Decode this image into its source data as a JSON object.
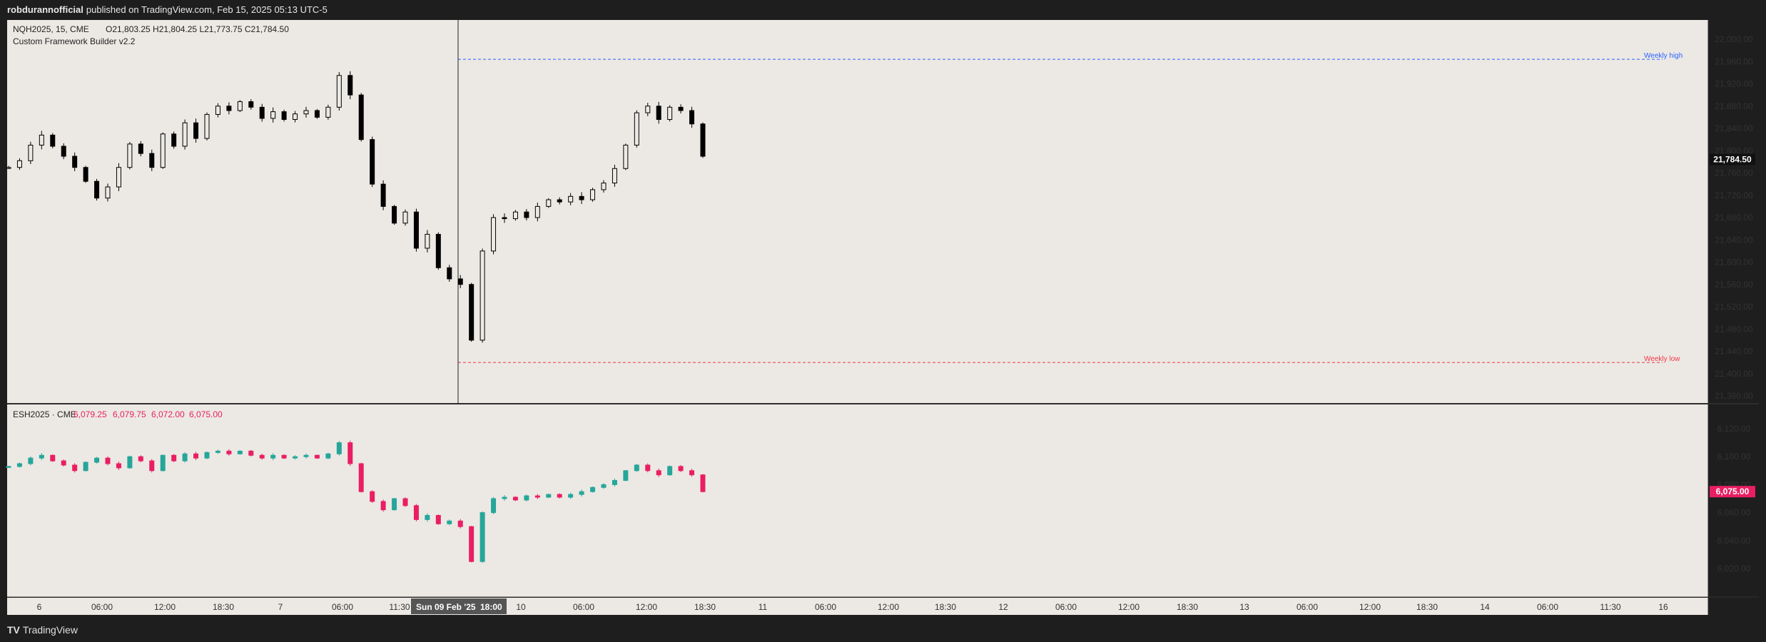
{
  "header": {
    "publisher": "robdurannofficial",
    "published_text": "published on TradingView.com, Feb 15, 2025 05:13 UTC-5"
  },
  "footer": {
    "logo": "TV",
    "brand": "TradingView"
  },
  "upper_pane": {
    "symbol": "NQH2025, 15, CME",
    "ohlc": "O21,803.25  H21,804.25  L21,773.75  C21,784.50",
    "indicator": "Custom Framework Builder v2.2",
    "price_label": "21,784.50",
    "weekly_high_label": "Weekly high",
    "weekly_low_label": "Weekly low",
    "y_ticks": [
      "22,000.00",
      "21,960.00",
      "21,920.00",
      "21,880.00",
      "21,840.00",
      "21,800.00",
      "21,760.00",
      "21,720.00",
      "21,680.00",
      "21,640.00",
      "21,600.00",
      "21,560.00",
      "21,520.00",
      "21,480.00",
      "21,440.00",
      "21,400.00",
      "21,360.00"
    ]
  },
  "lower_pane": {
    "symbol": "ESH2025 · CME",
    "o": "6,079.25",
    "h": "6,079.75",
    "l": "6,072.00",
    "c": "6,075.00",
    "price_label": "6,075.00",
    "y_ticks": [
      "6,120.00",
      "6,100.00",
      "6,080.00",
      "6,060.00",
      "6,040.00",
      "6,020.00"
    ]
  },
  "x_axis": {
    "ticks": [
      "6",
      "06:00",
      "12:00",
      "18:30",
      "7",
      "06:00",
      "11:30",
      "10",
      "06:00",
      "12:00",
      "18:30",
      "11",
      "06:00",
      "12:00",
      "18:30",
      "12",
      "06:00",
      "12:00",
      "18:30",
      "13",
      "06:00",
      "12:00",
      "18:30",
      "14",
      "06:00",
      "11:30",
      "16"
    ],
    "cursor_label": "Sun 09 Feb '25",
    "cursor_time": "18:00"
  },
  "colors": {
    "pane_bg": "#ece9e4",
    "frame_bg": "#1e1e1e",
    "candle": "#000000",
    "es_up": "#26a69a",
    "es_down": "#e91e63",
    "weekly_high": "#2962ff",
    "weekly_low": "#f23645"
  },
  "chart_data": [
    {
      "type": "candlestick",
      "symbol": "NQH2025",
      "interval": "15",
      "ylim": [
        21360,
        22000
      ],
      "weekly_high": 21964,
      "weekly_low": 21420,
      "last_close": 21784.5,
      "series": [
        {
          "name": "NQH2025",
          "values": [
            21770,
            21782,
            21810,
            21828,
            21808,
            21790,
            21770,
            21745,
            21715,
            21735,
            21770,
            21812,
            21795,
            21770,
            21830,
            21808,
            21850,
            21822,
            21865,
            21880,
            21872,
            21888,
            21878,
            21858,
            21870,
            21856,
            21866,
            21872,
            21860,
            21878,
            21935,
            21900,
            21820,
            21740,
            21700,
            21670,
            21690,
            21625,
            21650,
            21590,
            21570,
            21560,
            21460,
            21620,
            21680,
            21678,
            21690,
            21680,
            21700,
            21712,
            21708,
            21718,
            21712,
            21730,
            21742,
            21768,
            21810,
            21868,
            21880,
            21856,
            21878,
            21872,
            21848,
            21790
          ]
        }
      ]
    },
    {
      "type": "candlestick",
      "symbol": "ESH2025",
      "ylim": [
        6005,
        6130
      ],
      "last_close": 6075.0,
      "series": [
        {
          "name": "ESH2025",
          "values": [
            6093,
            6095,
            6099,
            6101,
            6097,
            6094,
            6090,
            6096,
            6099,
            6095,
            6092,
            6100,
            6097,
            6090,
            6101,
            6097,
            6102,
            6099,
            6103,
            6104,
            6102,
            6104,
            6101,
            6099,
            6101,
            6099,
            6100,
            6101,
            6099,
            6102,
            6110,
            6095,
            6075,
            6068,
            6062,
            6070,
            6065,
            6055,
            6058,
            6052,
            6054,
            6050,
            6025,
            6060,
            6070,
            6071,
            6069,
            6072,
            6071,
            6073,
            6071,
            6073,
            6075,
            6078,
            6080,
            6083,
            6090,
            6094,
            6090,
            6087,
            6093,
            6090,
            6087,
            6075
          ]
        }
      ]
    }
  ]
}
